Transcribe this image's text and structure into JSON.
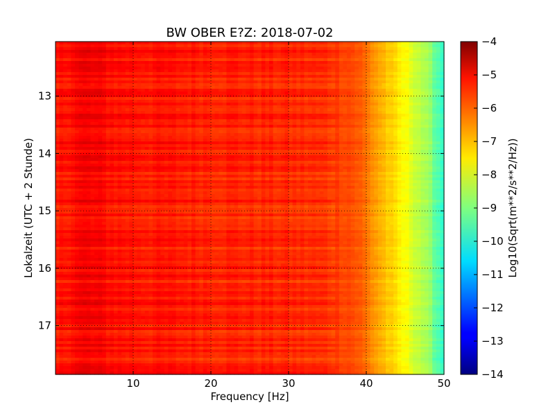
{
  "chart_data": {
    "type": "heatmap",
    "title": "BW OBER E?Z: 2018-07-02",
    "xlabel": "Frequency [Hz]",
    "ylabel": "Lokalzeit (UTC + 2 Stunde)",
    "xlim": [
      0,
      50
    ],
    "ylim": [
      12.05,
      17.85
    ],
    "y_inverted": true,
    "xticks": [
      10,
      20,
      30,
      40,
      50
    ],
    "yticks": [
      13,
      14,
      15,
      16,
      17
    ],
    "grid": true,
    "colormap": "jet",
    "colorbar": {
      "label": "Log10(Sqrt(m**2/s**2/Hz))",
      "range": [
        -14,
        -4
      ],
      "ticks": [
        -4,
        -5,
        -6,
        -7,
        -8,
        -9,
        -10,
        -11,
        -12,
        -13,
        -14
      ]
    },
    "frequency_profile": {
      "frequency_hz": [
        0,
        2,
        4,
        6,
        8,
        10,
        15,
        20,
        25,
        30,
        35,
        37,
        38,
        39,
        40,
        41,
        42,
        43,
        44,
        45,
        46,
        47,
        48,
        49,
        50
      ],
      "log10_amplitude": [
        -5.6,
        -5.3,
        -5.2,
        -5.3,
        -5.4,
        -5.45,
        -5.5,
        -5.55,
        -5.6,
        -5.65,
        -5.75,
        -5.85,
        -5.95,
        -6.1,
        -6.4,
        -6.7,
        -7.0,
        -7.3,
        -7.6,
        -7.8,
        -8.1,
        -8.4,
        -8.8,
        -9.3,
        -9.8
      ]
    },
    "row_variation": 0.3
  }
}
